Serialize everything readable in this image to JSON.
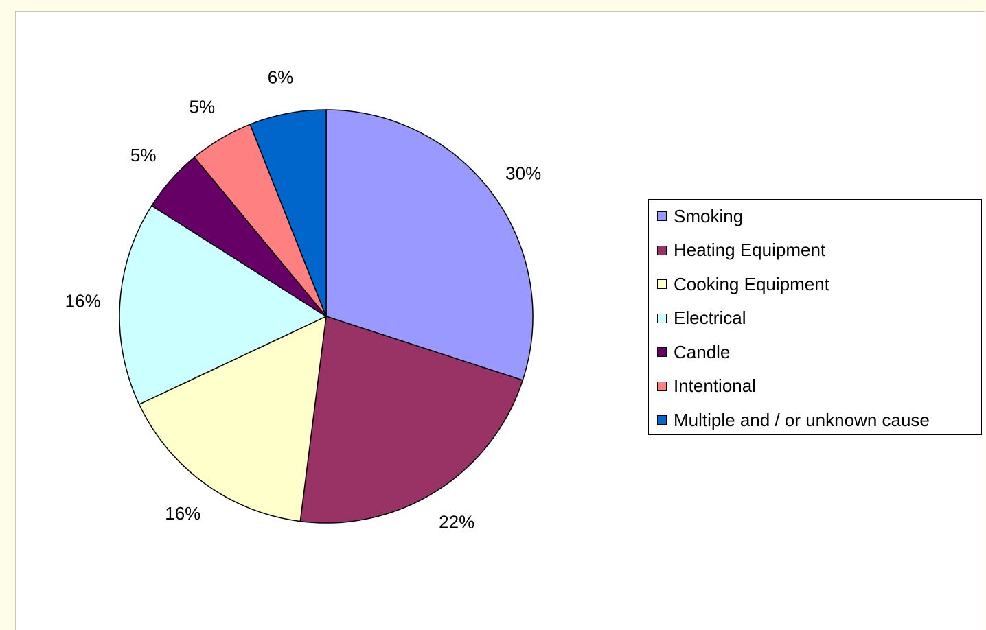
{
  "chart_data": {
    "type": "pie",
    "categories": [
      "Smoking",
      "Heating Equipment",
      "Cooking Equipment",
      "Electrical",
      "Candle",
      "Intentional",
      "Multiple and / or unknown cause"
    ],
    "values": [
      30,
      22,
      16,
      16,
      5,
      5,
      6
    ],
    "data_labels": [
      "30%",
      "22%",
      "16%",
      "16%",
      "5%",
      "5%",
      "6%"
    ],
    "colors": [
      "#9999ff",
      "#993366",
      "#ffffcc",
      "#ccffff",
      "#660066",
      "#ff8080",
      "#0066cc"
    ],
    "legend_position": "right",
    "start_angle": "12 o'clock",
    "direction": "clockwise"
  }
}
